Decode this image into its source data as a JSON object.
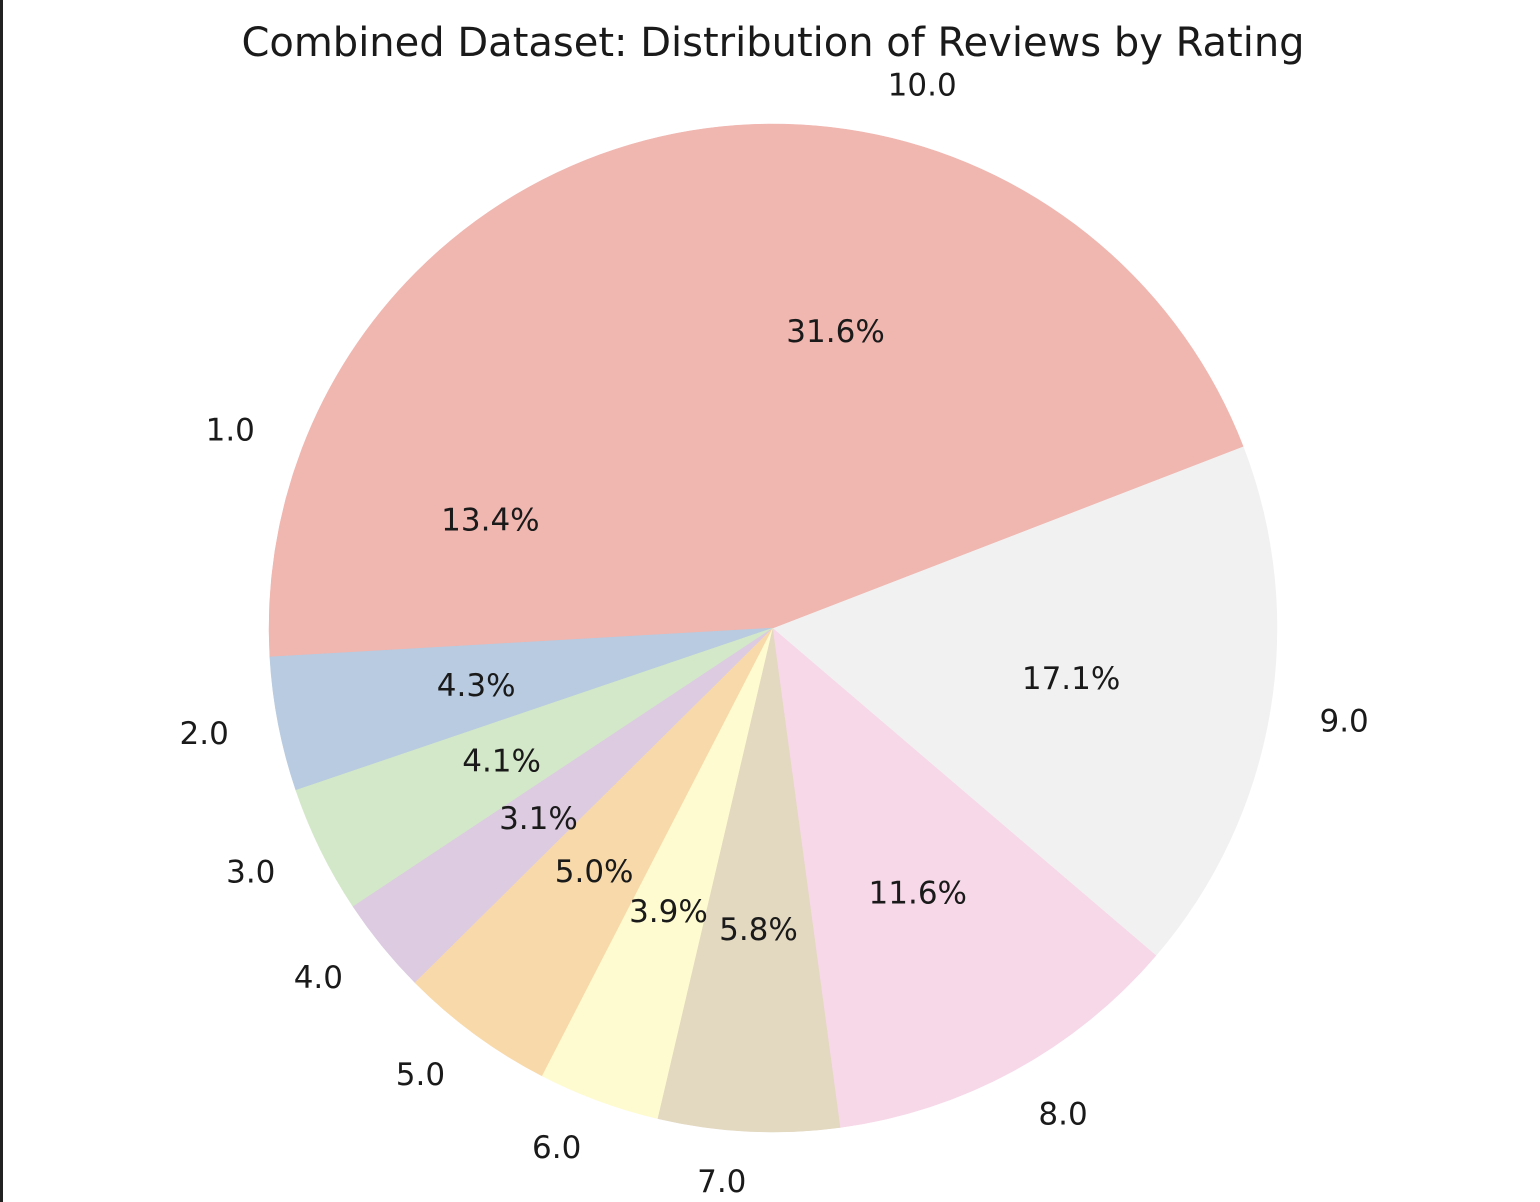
{
  "chart_data": {
    "type": "pie",
    "title": "Combined Dataset: Distribution of Reviews by Rating",
    "start_angle_deg": 135,
    "direction": "counterclockwise",
    "slices": [
      {
        "label": "1.0",
        "percent": 13.4,
        "pct_text": "13.4%",
        "color": "#f0b6b0"
      },
      {
        "label": "2.0",
        "percent": 4.3,
        "pct_text": "4.3%",
        "color": "#b8cbe0"
      },
      {
        "label": "3.0",
        "percent": 4.1,
        "pct_text": "4.1%",
        "color": "#d3e8c8"
      },
      {
        "label": "4.0",
        "percent": 3.1,
        "pct_text": "3.1%",
        "color": "#dccbe1"
      },
      {
        "label": "5.0",
        "percent": 5.0,
        "pct_text": "5.0%",
        "color": "#f8d9aa"
      },
      {
        "label": "6.0",
        "percent": 3.9,
        "pct_text": "3.9%",
        "color": "#fefbd0"
      },
      {
        "label": "7.0",
        "percent": 5.8,
        "pct_text": "5.8%",
        "color": "#e3d8c0"
      },
      {
        "label": "8.0",
        "percent": 11.6,
        "pct_text": "11.6%",
        "color": "#f7d8e8"
      },
      {
        "label": "9.0",
        "percent": 17.1,
        "pct_text": "17.1%",
        "color": "#f1f1f1"
      },
      {
        "label": "10.0",
        "percent": 31.6,
        "pct_text": "31.6%",
        "color": "#f0b6b0"
      }
    ]
  }
}
